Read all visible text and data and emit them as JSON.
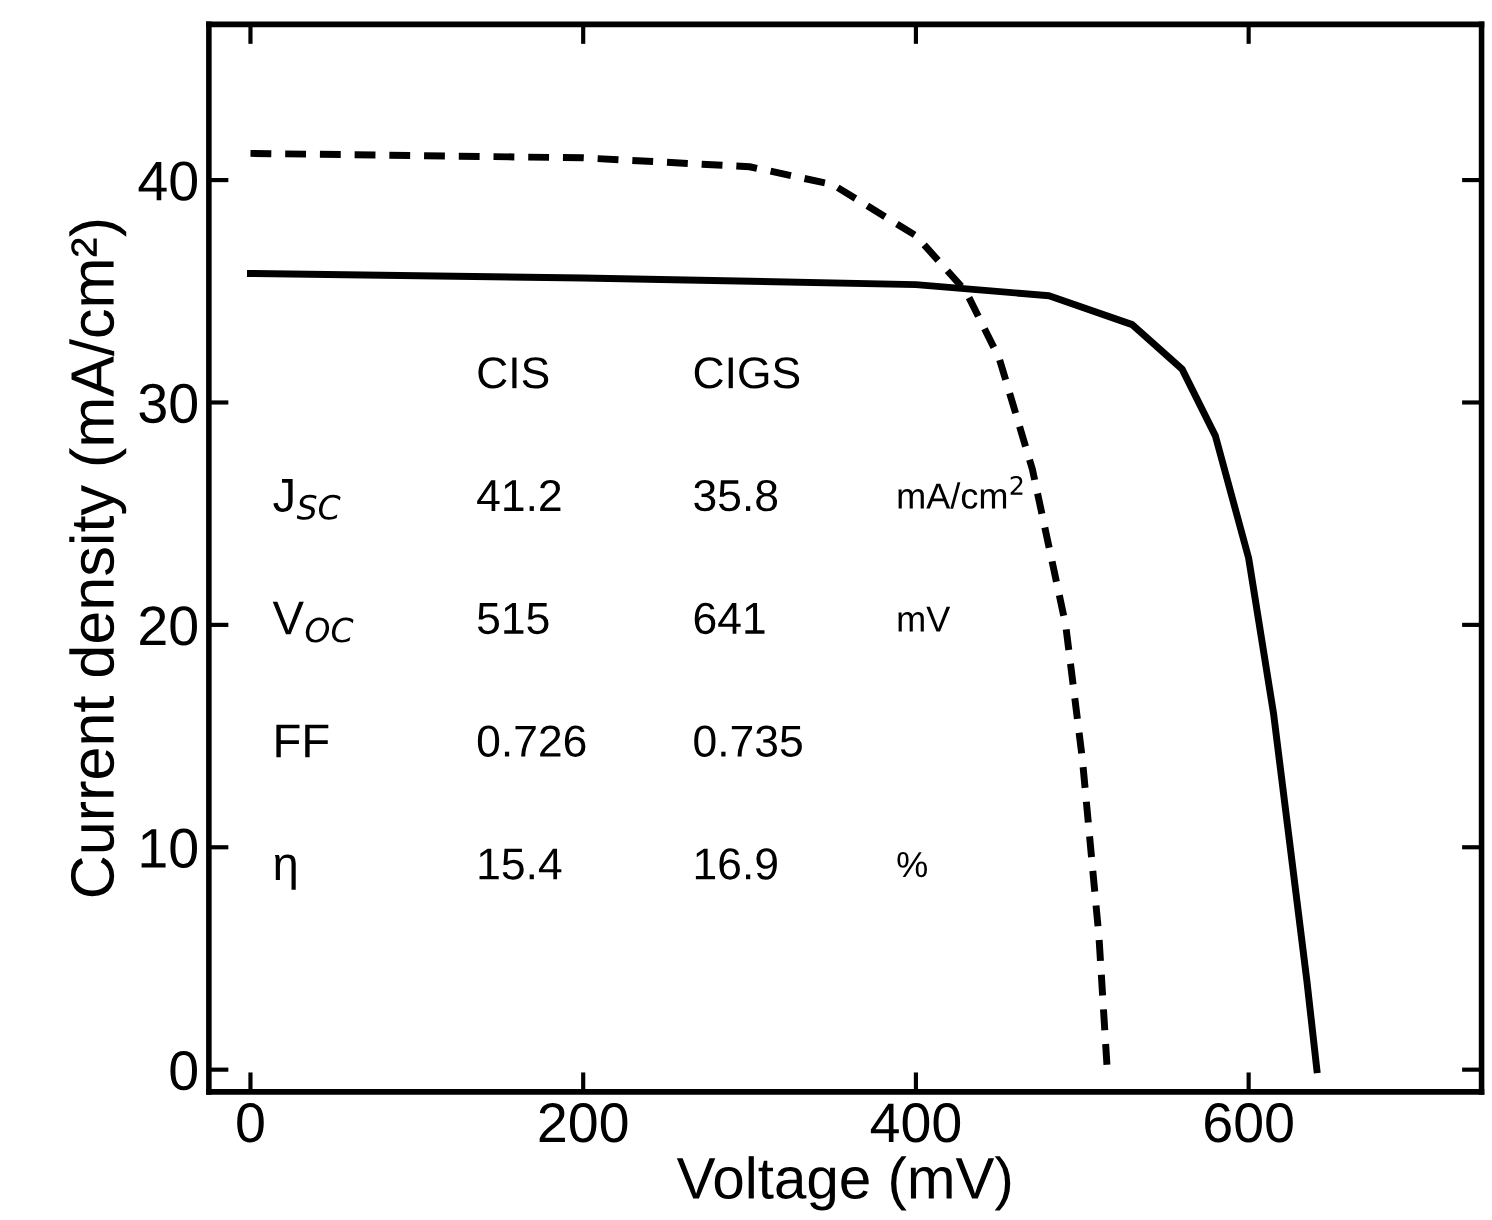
{
  "chart_data": {
    "type": "line",
    "xlabel": "Voltage (mV)",
    "ylabel": "Current density (mA/cm²)",
    "xlim": [
      -25,
      740
    ],
    "ylim": [
      -1,
      47
    ],
    "xticks": [
      0,
      200,
      400,
      600
    ],
    "yticks": [
      0,
      10,
      20,
      30,
      40
    ],
    "grid": false,
    "legend": false,
    "marker": "none",
    "series": [
      {
        "color": "#000000",
        "line_style": "dashed",
        "x": [
          0,
          100,
          200,
          300,
          350,
          400,
          430,
          450,
          470,
          490,
          500,
          510,
          515
        ],
        "values": [
          41.2,
          41.1,
          41.0,
          40.6,
          39.8,
          37.5,
          35.0,
          32,
          27,
          20,
          14,
          6,
          0
        ]
      },
      {
        "color": "#000000",
        "line_style": "solid",
        "x": [
          0,
          200,
          400,
          480,
          530,
          560,
          580,
          600,
          615,
          625,
          635,
          641
        ],
        "values": [
          35.8,
          35.6,
          35.3,
          34.8,
          33.5,
          31.5,
          28.5,
          23,
          16,
          10,
          4,
          0
        ]
      }
    ],
    "annotations": [
      "CIS",
      "CIGS",
      "J$_{SC}$",
      "41.2",
      "35.8",
      "mA/cm$^{2}$",
      "V$_{OC}$",
      "515",
      "641",
      "mV",
      "FF",
      "0.726",
      "0.735",
      "η",
      "15.4",
      "16.9",
      "%"
    ]
  }
}
